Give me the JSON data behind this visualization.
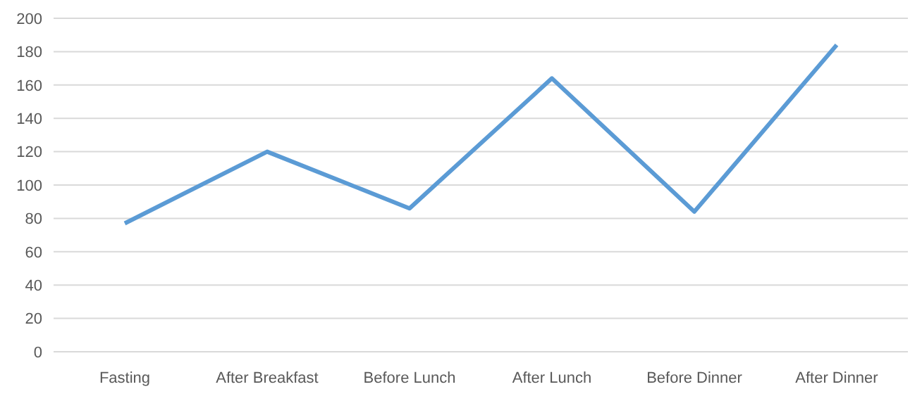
{
  "chart_data": {
    "type": "line",
    "categories": [
      "Fasting",
      "After Breakfast",
      "Before Lunch",
      "After Lunch",
      "Before Dinner",
      "After Dinner"
    ],
    "series": [
      {
        "color": "#5b9bd5",
        "values": [
          77,
          120,
          86,
          164,
          84,
          184
        ]
      }
    ],
    "ylim": [
      0,
      200
    ],
    "yticks": [
      0,
      20,
      40,
      60,
      80,
      100,
      120,
      140,
      160,
      180,
      200
    ],
    "grid": "y",
    "legend": false,
    "marker": "none",
    "line_style": "solid"
  }
}
